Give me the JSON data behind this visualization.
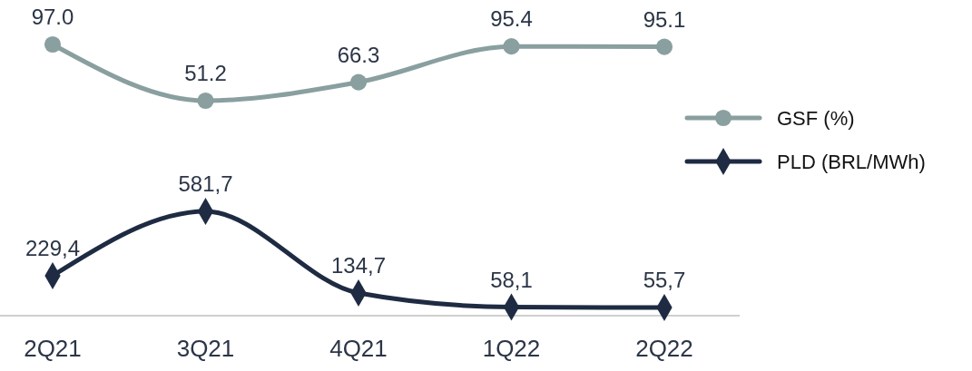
{
  "chart_data": [
    {
      "type": "line",
      "categories": [
        null,
        null,
        null,
        null,
        null
      ],
      "legend": "right",
      "series": [
        {
          "name": "GSF (%)",
          "color": "#8a9f9f",
          "marker": "circle",
          "values": [
            97.0,
            51.2,
            66.3,
            95.4,
            95.1
          ],
          "value_labels": [
            "97.0",
            "51.2",
            "66.3",
            "95.4",
            "95.1"
          ]
        }
      ]
    },
    {
      "type": "line",
      "categories": [
        "2Q21",
        "3Q21",
        "4Q21",
        "1Q22",
        "2Q22"
      ],
      "legend": "right",
      "series": [
        {
          "name": "PLD (BRL/MWh)",
          "color": "#1e2b42",
          "marker": "diamond",
          "values": [
            229.4,
            581.7,
            134.7,
            58.1,
            55.7
          ],
          "value_labels": [
            "229,4",
            "581,7",
            "134,7",
            "58,1",
            "55,7"
          ]
        }
      ]
    }
  ]
}
